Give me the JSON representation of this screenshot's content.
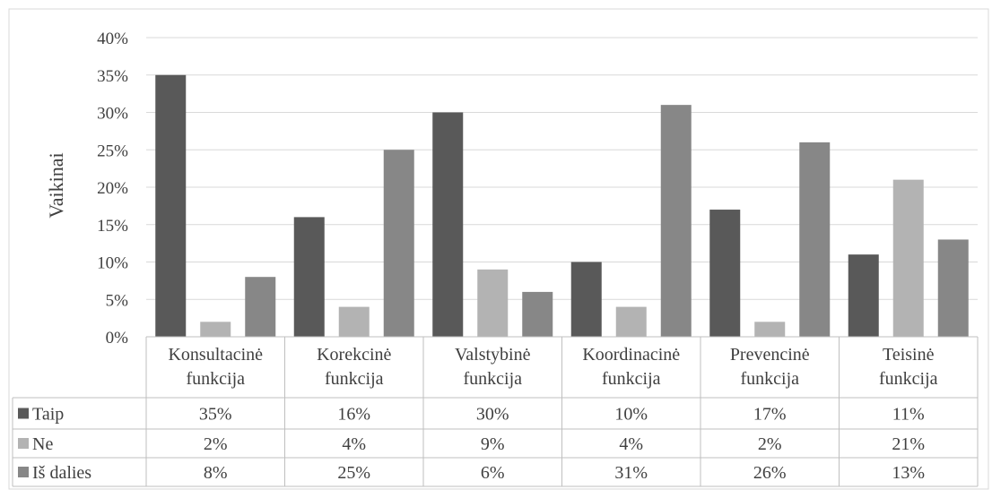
{
  "chart_data": {
    "type": "bar",
    "ylabel": "Vaikinai",
    "xlabel": "",
    "title": "",
    "ylim": [
      0,
      40
    ],
    "yticks": [
      0,
      5,
      10,
      15,
      20,
      25,
      30,
      35,
      40
    ],
    "ytick_labels": [
      "0%",
      "5%",
      "10%",
      "15%",
      "20%",
      "25%",
      "30%",
      "35%",
      "40%"
    ],
    "grid": true,
    "legend": "data-table",
    "categories": [
      [
        "Konsultacinė",
        "funkcija"
      ],
      [
        "Korekcinė",
        "funkcija"
      ],
      [
        "Valstybinė",
        "funkcija"
      ],
      [
        "Koordinacinė",
        "funkcija"
      ],
      [
        "Prevencinė",
        "funkcija"
      ],
      [
        "Teisinė",
        "funkcija"
      ]
    ],
    "series": [
      {
        "name": "Taip",
        "values": [
          35,
          16,
          30,
          10,
          17,
          11
        ],
        "labels": [
          "35%",
          "16%",
          "30%",
          "10%",
          "17%",
          "11%"
        ],
        "color": "#595959"
      },
      {
        "name": "Ne",
        "values": [
          2,
          4,
          9,
          4,
          2,
          21
        ],
        "labels": [
          "2%",
          "4%",
          "9%",
          "4%",
          "2%",
          "21%"
        ],
        "color": "#b3b3b3"
      },
      {
        "name": "Iš dalies",
        "values": [
          8,
          25,
          6,
          31,
          26,
          13
        ],
        "labels": [
          "8%",
          "25%",
          "6%",
          "31%",
          "26%",
          "13%"
        ],
        "color": "#878787"
      }
    ]
  },
  "colors": {
    "gridline": "#d9d9d9",
    "axis_text": "#404040",
    "table_border": "#bfbfbf",
    "frame_border": "#d9d9d9"
  }
}
